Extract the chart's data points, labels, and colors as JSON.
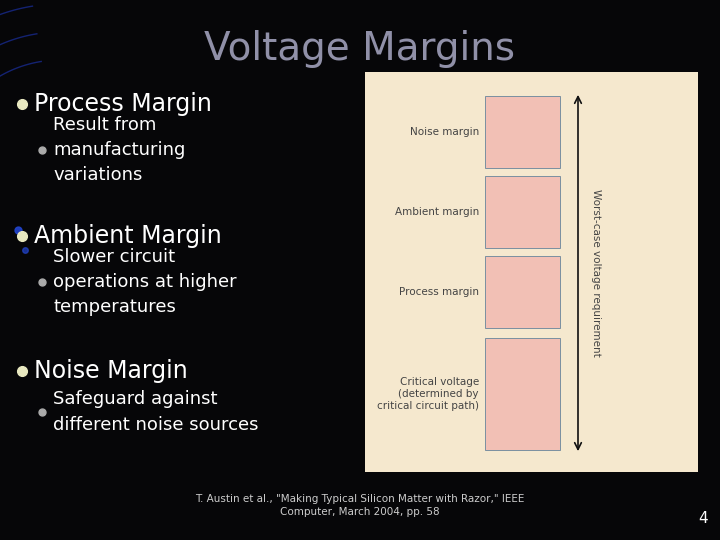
{
  "title": "Voltage Margins",
  "title_color": "#9090a8",
  "title_fontsize": 28,
  "bg_color": "#060608",
  "bullet_color": "#ffffff",
  "bullet_fontsize": 17,
  "sub_bullet_fontsize": 13,
  "bullet_dot_color": "#e8e8c0",
  "sub_bullet_dot_color": "#aaaaaa",
  "bullets": [
    {
      "text": "Process Margin",
      "sub": "Result from\nmanufacturing\nvariations"
    },
    {
      "text": "Ambient Margin",
      "sub": "Slower circuit\noperations at higher\ntemperatures"
    },
    {
      "text": "Noise Margin",
      "sub": "Safeguard against\ndifferent noise sources"
    }
  ],
  "diagram_bg": "#f5e8ce",
  "diagram_box_fill": "#f2c0b5",
  "diagram_box_edge": "#7a8fa0",
  "diagram_labels": [
    "Noise margin",
    "Ambient margin",
    "Process margin",
    "Critical voltage\n(determined by\ncritical circuit path)"
  ],
  "diagram_arrow_label": "Worst-case voltage requirement",
  "diagram_label_color": "#444444",
  "diagram_arrow_color": "#111111",
  "footnote": "T. Austin et al., \"Making Typical Silicon Matter with Razor,\" IEEE\nComputer, March 2004, pp. 58",
  "footnote_color": "#cccccc",
  "page_number": "4",
  "page_number_color": "#ffffff",
  "blue_curve_color": "#1a2fa0",
  "blue_dot_color": "#2244cc"
}
